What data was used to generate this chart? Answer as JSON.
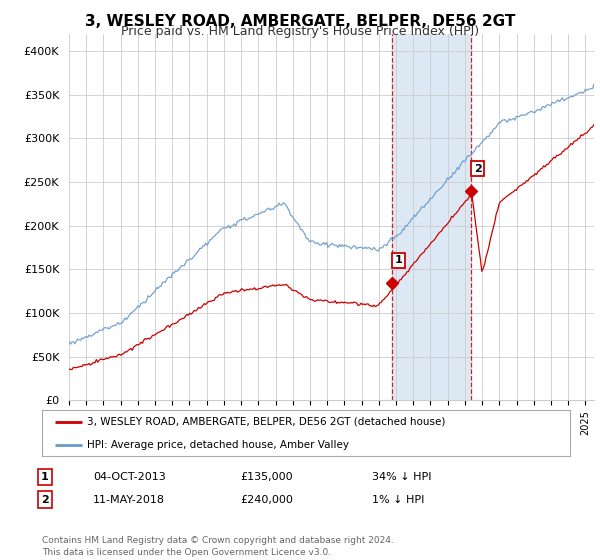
{
  "title": "3, WESLEY ROAD, AMBERGATE, BELPER, DE56 2GT",
  "subtitle": "Price paid vs. HM Land Registry's House Price Index (HPI)",
  "ylabel_ticks": [
    "£0",
    "£50K",
    "£100K",
    "£150K",
    "£200K",
    "£250K",
    "£300K",
    "£350K",
    "£400K"
  ],
  "ytick_values": [
    0,
    50000,
    100000,
    150000,
    200000,
    250000,
    300000,
    350000,
    400000
  ],
  "ylim": [
    0,
    420000
  ],
  "xlim_start": 1995.0,
  "xlim_end": 2025.5,
  "hpi_color": "#6699cc",
  "price_color": "#cc0000",
  "sale1_date": 2013.75,
  "sale1_price": 135000,
  "sale2_date": 2018.36,
  "sale2_price": 240000,
  "legend_line1": "3, WESLEY ROAD, AMBERGATE, BELPER, DE56 2GT (detached house)",
  "legend_line2": "HPI: Average price, detached house, Amber Valley",
  "table_row1": [
    "1",
    "04-OCT-2013",
    "£135,000",
    "34% ↓ HPI"
  ],
  "table_row2": [
    "2",
    "11-MAY-2018",
    "£240,000",
    "1% ↓ HPI"
  ],
  "footnote": "Contains HM Land Registry data © Crown copyright and database right 2024.\nThis data is licensed under the Open Government Licence v3.0.",
  "bg_color": "#ffffff",
  "highlight_color": "#dce9f5",
  "grid_color": "#cccccc",
  "title_fontsize": 11,
  "subtitle_fontsize": 9,
  "tick_fontsize": 8
}
